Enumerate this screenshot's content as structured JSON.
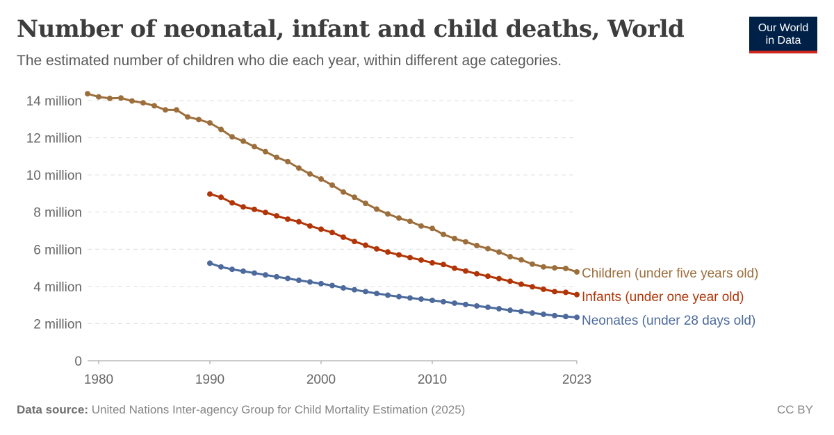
{
  "header": {
    "title": "Number of neonatal, infant and child deaths, World",
    "subtitle": "The estimated number of children who die each year, within different age categories.",
    "logo": "Our World in Data"
  },
  "footer": {
    "source_label": "Data source:",
    "source": "United Nations Inter-agency Group for Child Mortality Estimation (2025)",
    "license": "CC BY"
  },
  "colors": {
    "children": "#9c6e3b",
    "infants": "#b13507",
    "neonates": "#4c6a9c",
    "logo_bg": "#002147",
    "logo_accent": "#ce261e"
  },
  "chart_data": {
    "type": "line",
    "title": "Number of neonatal, infant and child deaths, World",
    "xlim": [
      1979,
      2023
    ],
    "ylim": [
      0,
      14000000
    ],
    "grid": "horizontal dashed",
    "legend": "right (line-end labels)",
    "x_ticks": [
      "1980",
      "1990",
      "2000",
      "2010",
      "2023"
    ],
    "x_tick_values": [
      1980,
      1990,
      2000,
      2010,
      2023
    ],
    "y_ticks": [
      "0",
      "2 million",
      "4 million",
      "6 million",
      "8 million",
      "10 million",
      "12 million",
      "14 million"
    ],
    "y_tick_values": [
      0,
      2,
      4,
      6,
      8,
      10,
      12,
      14
    ],
    "y_unit": "million",
    "series": [
      {
        "name": "Children (under five years old)",
        "color_key": "children",
        "start_year": 1979,
        "values": [
          14.37,
          14.2,
          14.12,
          14.14,
          13.98,
          13.88,
          13.72,
          13.5,
          13.5,
          13.12,
          12.98,
          12.8,
          12.45,
          12.05,
          11.82,
          11.52,
          11.25,
          10.95,
          10.72,
          10.37,
          10.05,
          9.78,
          9.45,
          9.08,
          8.8,
          8.47,
          8.16,
          7.9,
          7.68,
          7.5,
          7.25,
          7.12,
          6.8,
          6.58,
          6.4,
          6.2,
          6.03,
          5.85,
          5.6,
          5.43,
          5.2,
          5.05,
          5.0,
          4.97,
          4.78
        ]
      },
      {
        "name": "Infants (under one year old)",
        "color_key": "infants",
        "start_year": 1990,
        "values": [
          8.97,
          8.8,
          8.5,
          8.28,
          8.15,
          7.98,
          7.8,
          7.62,
          7.48,
          7.25,
          7.08,
          6.9,
          6.65,
          6.42,
          6.22,
          6.02,
          5.85,
          5.7,
          5.55,
          5.42,
          5.27,
          5.18,
          4.98,
          4.83,
          4.68,
          4.55,
          4.42,
          4.28,
          4.12,
          3.98,
          3.85,
          3.72,
          3.68,
          3.56
        ]
      },
      {
        "name": "Neonates (under 28 days old)",
        "color_key": "neonates",
        "start_year": 1990,
        "values": [
          5.25,
          5.05,
          4.92,
          4.82,
          4.72,
          4.62,
          4.52,
          4.43,
          4.33,
          4.24,
          4.15,
          4.05,
          3.92,
          3.82,
          3.72,
          3.62,
          3.53,
          3.45,
          3.38,
          3.32,
          3.25,
          3.18,
          3.1,
          3.03,
          2.95,
          2.88,
          2.8,
          2.72,
          2.65,
          2.57,
          2.5,
          2.43,
          2.38,
          2.34
        ]
      }
    ]
  }
}
